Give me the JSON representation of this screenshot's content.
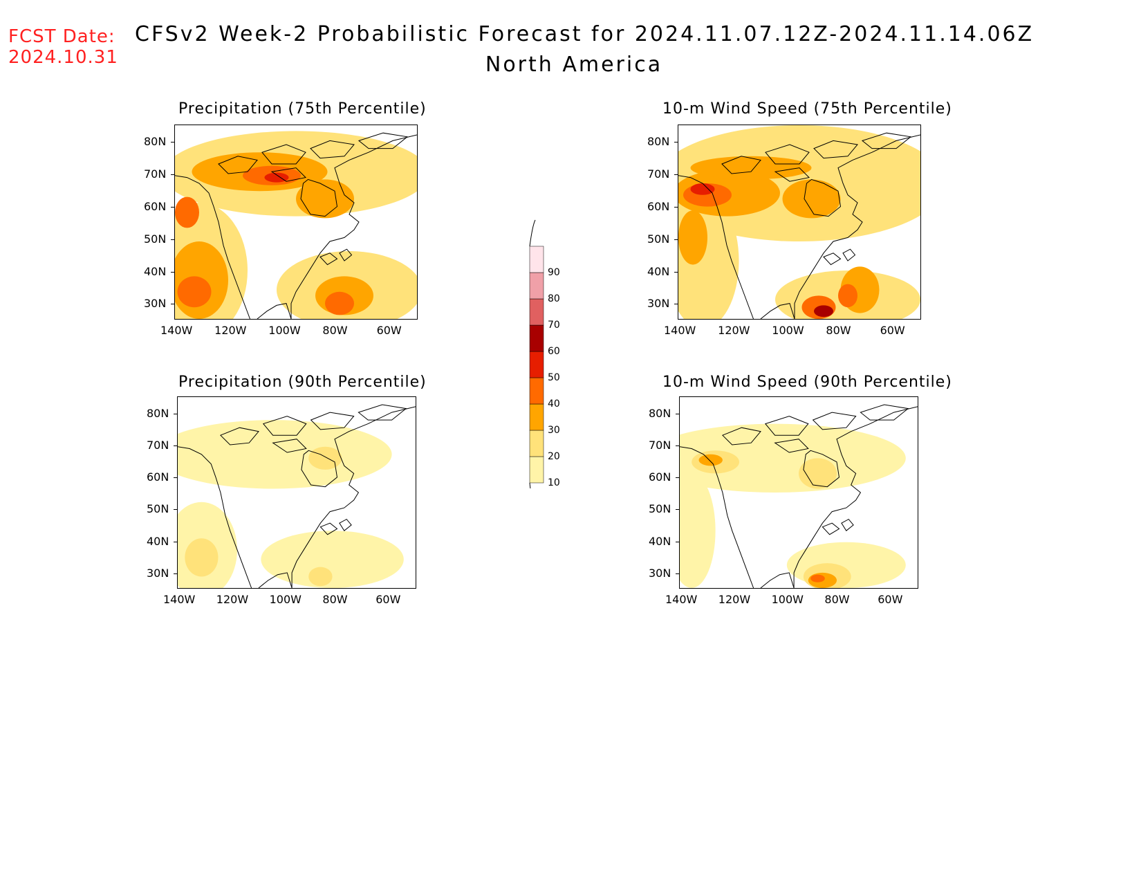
{
  "header": {
    "fcst_label": "FCST Date:",
    "fcst_date": "2024.10.31",
    "title": "CFSv2 Week-2 Probabilistic Forecast for 2024.11.07.12Z-2024.11.14.06Z",
    "subtitle": "North America"
  },
  "panels": [
    {
      "id": "p75",
      "title": "Precipitation (75th Percentile)",
      "variable": "precipitation",
      "percentile": 75
    },
    {
      "id": "w75",
      "title": "10-m Wind Speed (75th Percentile)",
      "variable": "wind",
      "percentile": 75
    },
    {
      "id": "p90",
      "title": "Precipitation (90th Percentile)",
      "variable": "precipitation",
      "percentile": 90
    },
    {
      "id": "w90",
      "title": "10-m Wind Speed (90th Percentile)",
      "variable": "wind",
      "percentile": 90
    }
  ],
  "axes": {
    "lat_labels": [
      "80N",
      "70N",
      "60N",
      "50N",
      "40N",
      "30N"
    ],
    "lon_labels": [
      "140W",
      "120W",
      "100W",
      "80W",
      "60W"
    ]
  },
  "colorbar": {
    "levels": [
      "10",
      "20",
      "30",
      "40",
      "50",
      "60",
      "70",
      "80",
      "90"
    ],
    "colors": [
      "#fff4a8",
      "#ffe27a",
      "#ffa500",
      "#ff6a00",
      "#e61e00",
      "#a80000",
      "#e06060",
      "#f0a0a8",
      "#ffe4ea"
    ]
  }
}
